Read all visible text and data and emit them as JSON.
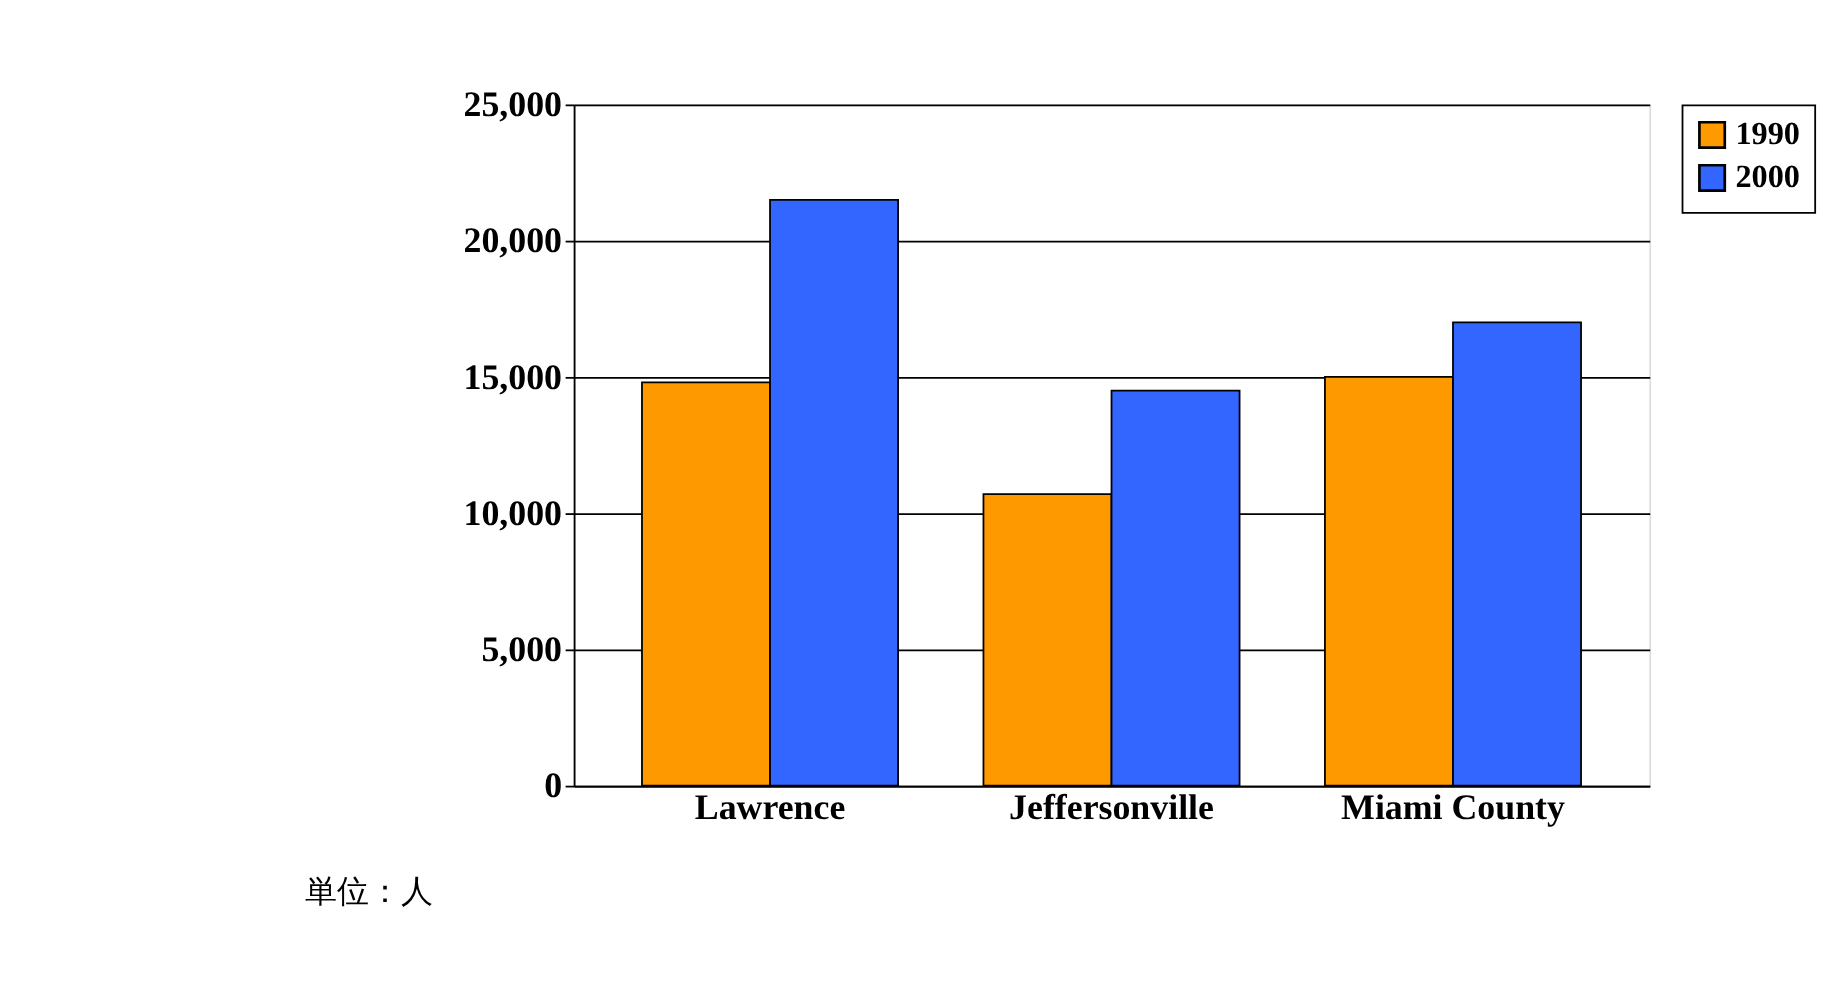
{
  "chart_data": {
    "type": "bar",
    "categories": [
      "Lawrence",
      "Jeffersonville",
      "Miami County"
    ],
    "series": [
      {
        "name": "1990",
        "color": "#ff9900",
        "values": [
          14800,
          10700,
          15000
        ]
      },
      {
        "name": "2000",
        "color": "#3366ff",
        "values": [
          21500,
          14500,
          17000
        ]
      }
    ],
    "ylim": [
      0,
      25000
    ],
    "yticks": [
      {
        "value": 0,
        "label": "0"
      },
      {
        "value": 5000,
        "label": "5,000"
      },
      {
        "value": 10000,
        "label": "10,000"
      },
      {
        "value": 15000,
        "label": "15,000"
      },
      {
        "value": 20000,
        "label": "20,000"
      },
      {
        "value": 25000,
        "label": "25,000"
      }
    ],
    "grid": "y",
    "legend": "right",
    "annotations": [
      "単位：人"
    ]
  }
}
